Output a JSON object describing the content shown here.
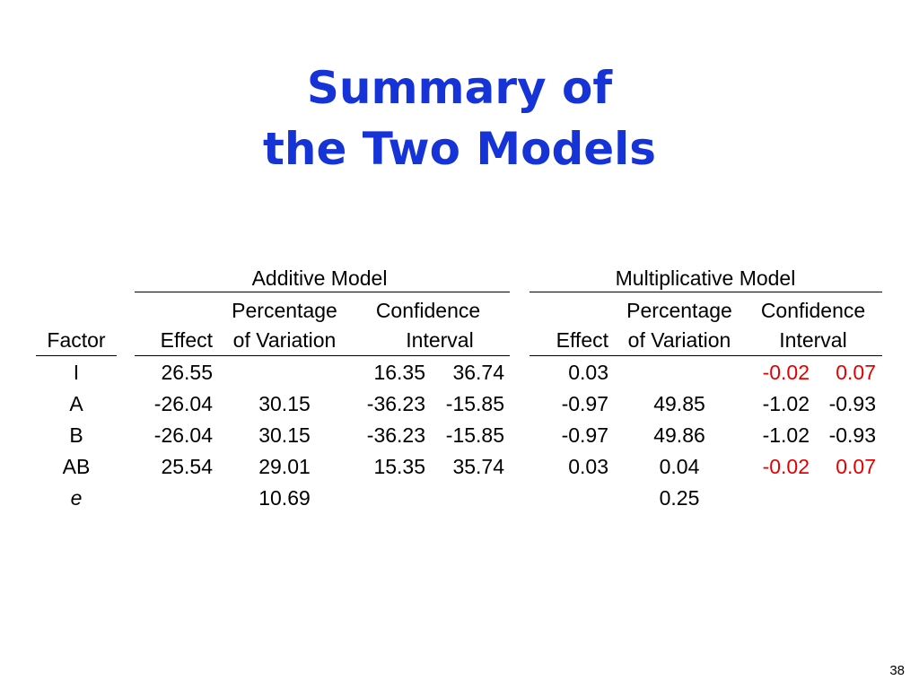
{
  "title": {
    "line1": "Summary of",
    "line2": "the Two Models"
  },
  "table": {
    "groups": {
      "additive": "Additive Model",
      "multiplicative": "Multiplicative Model"
    },
    "headers": {
      "factor": "Factor",
      "effect": "Effect",
      "percentage_line1": "Percentage",
      "percentage_line2": "of Variation",
      "confidence_line1": "Confidence",
      "confidence_line2": "Interval"
    },
    "rows": [
      {
        "factor": "I",
        "add_effect": "26.55",
        "add_pct": "",
        "add_ci_lo": "16.35",
        "add_ci_hi": "36.74",
        "mul_effect": "0.03",
        "mul_pct": "",
        "mul_ci_lo": "-0.02",
        "mul_ci_hi": "0.07"
      },
      {
        "factor": "A",
        "add_effect": "-26.04",
        "add_pct": "30.15",
        "add_ci_lo": "-36.23",
        "add_ci_hi": "-15.85",
        "mul_effect": "-0.97",
        "mul_pct": "49.85",
        "mul_ci_lo": "-1.02",
        "mul_ci_hi": "-0.93"
      },
      {
        "factor": "B",
        "add_effect": "-26.04",
        "add_pct": "30.15",
        "add_ci_lo": "-36.23",
        "add_ci_hi": "-15.85",
        "mul_effect": "-0.97",
        "mul_pct": "49.86",
        "mul_ci_lo": "-1.02",
        "mul_ci_hi": "-0.93"
      },
      {
        "factor": "AB",
        "add_effect": "25.54",
        "add_pct": "29.01",
        "add_ci_lo": "15.35",
        "add_ci_hi": "35.74",
        "mul_effect": "0.03",
        "mul_pct": "0.04",
        "mul_ci_lo": "-0.02",
        "mul_ci_hi": "0.07"
      },
      {
        "factor": "e",
        "add_effect": "",
        "add_pct": "10.69",
        "add_ci_lo": "",
        "add_ci_hi": "",
        "mul_effect": "",
        "mul_pct": "0.25",
        "mul_ci_lo": "",
        "mul_ci_hi": ""
      }
    ]
  },
  "colors": {
    "title": "#1533d6",
    "highlight": "#e50000",
    "text": "#000000"
  },
  "page_number": "38"
}
